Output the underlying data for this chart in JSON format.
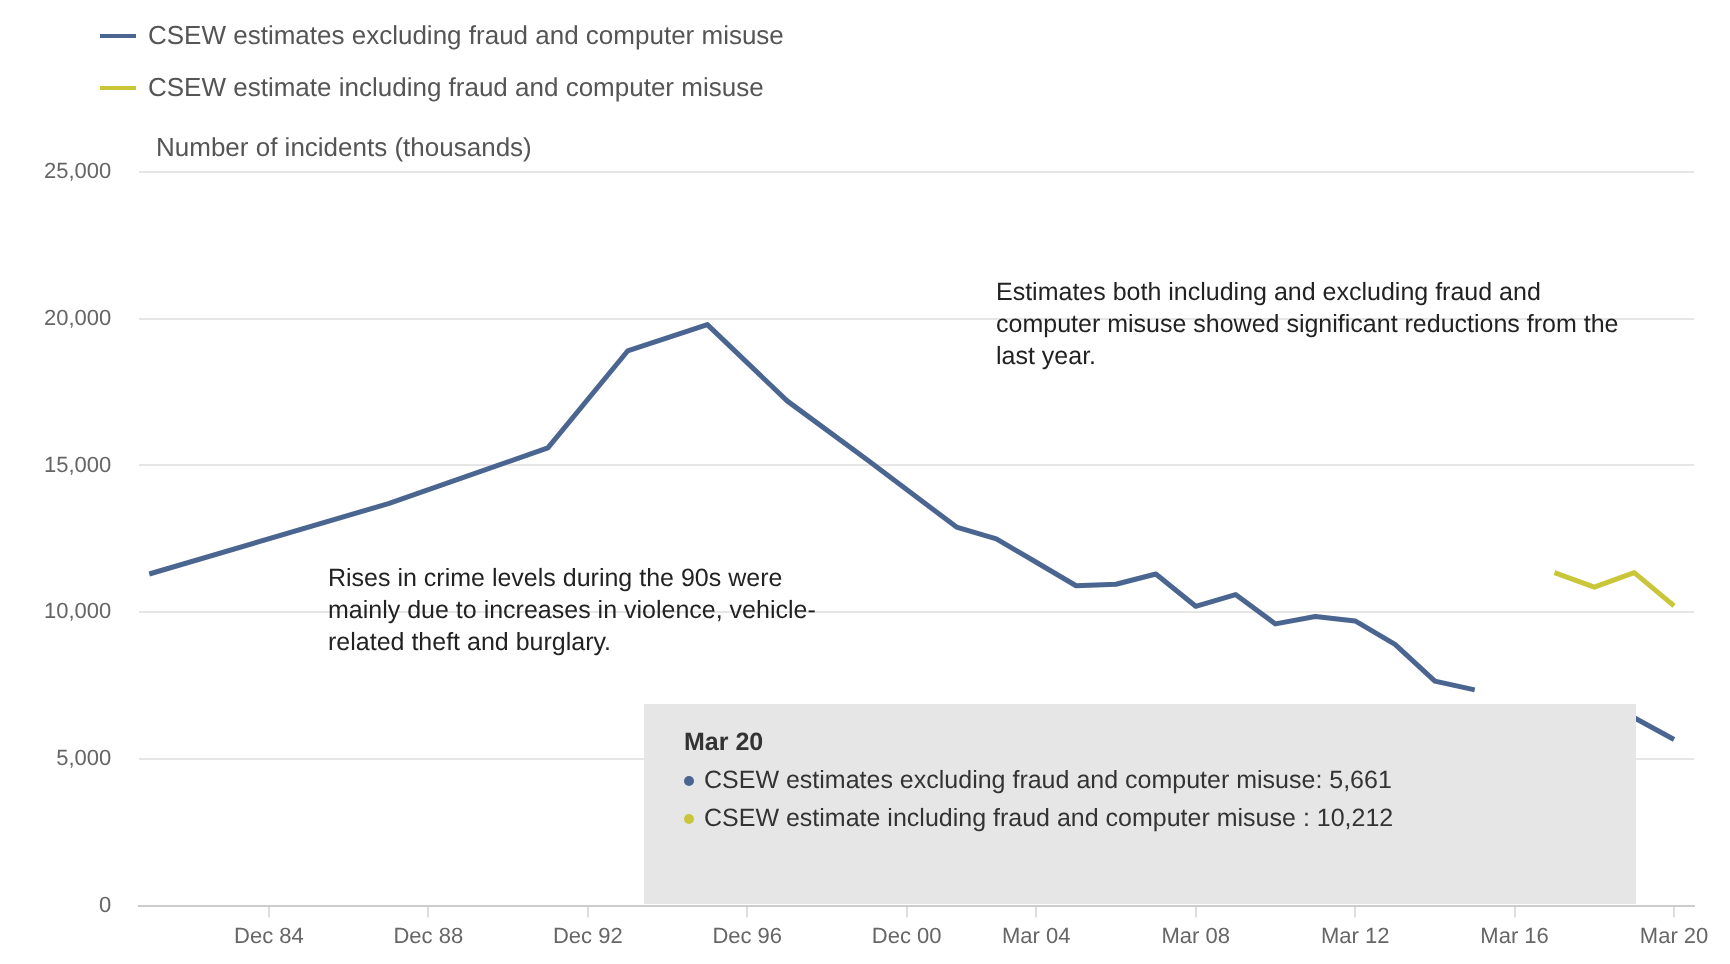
{
  "chart_data": {
    "type": "line",
    "ylabel": "Number of incidents (thousands)",
    "x": [
      "1981-12",
      "1987-12",
      "1991-12",
      "1993-12",
      "1995-12",
      "1997-12",
      "1999-12",
      "2002-03",
      "2003-03",
      "2004-03",
      "2005-03",
      "2006-03",
      "2007-03",
      "2008-03",
      "2009-03",
      "2010-03",
      "2011-03",
      "2012-03",
      "2013-03",
      "2014-03",
      "2015-03",
      "2016-03",
      "2017-03",
      "2018-03",
      "2019-03",
      "2020-03"
    ],
    "series": [
      {
        "name": "CSEW estimates excluding fraud and computer misuse",
        "color": "#4a6590",
        "values": [
          11300,
          13700,
          15600,
          18900,
          19800,
          17200,
          15200,
          12900,
          12500,
          11700,
          10900,
          10950,
          11300,
          10200,
          10600,
          9600,
          9850,
          9700,
          8900,
          7650,
          7350,
          null,
          null,
          null,
          6400,
          5661
        ]
      },
      {
        "name": "CSEW estimate including fraud and computer misuse",
        "color": "#c9c63a",
        "x": [
          "2017-03",
          "2018-03",
          "2019-03",
          "2020-03"
        ],
        "values": [
          11350,
          10850,
          11350,
          10212
        ]
      }
    ],
    "xlim": [
      "1981-09",
      "2020-09"
    ],
    "xticks": [
      {
        "value": "1984-12",
        "label": "Dec 84"
      },
      {
        "value": "1988-12",
        "label": "Dec 88"
      },
      {
        "value": "1992-12",
        "label": "Dec 92"
      },
      {
        "value": "1996-12",
        "label": "Dec 96"
      },
      {
        "value": "2000-12",
        "label": "Dec 00"
      },
      {
        "value": "2004-03",
        "label": "Mar 04"
      },
      {
        "value": "2008-03",
        "label": "Mar 08"
      },
      {
        "value": "2012-03",
        "label": "Mar 12"
      },
      {
        "value": "2016-03",
        "label": "Mar 16"
      },
      {
        "value": "2020-03",
        "label": "Mar 20"
      }
    ],
    "ylim": [
      0,
      25000
    ],
    "yticks": [
      0,
      {
        "value": 5000,
        "label": "5,000"
      },
      {
        "value": 10000,
        "label": "10,000"
      },
      {
        "value": 15000,
        "label": "15,000"
      },
      {
        "value": 20000,
        "label": "20,000"
      },
      {
        "value": 25000,
        "label": "25,000"
      }
    ],
    "grid": "y",
    "legend": "top left",
    "marker": "none",
    "line_style": "solid",
    "annotations": [
      "Estimates both including and excluding fraud and computer misuse showed significant reductions from the last year.",
      "Rises in crime levels during the 90s were mainly due to increases in violence, vehicle-related theft and burglary.",
      "Mar 20",
      "CSEW estimates excluding fraud and computer misuse: 5,661",
      "CSEW estimate including fraud and computer misuse : 10,212"
    ]
  }
}
